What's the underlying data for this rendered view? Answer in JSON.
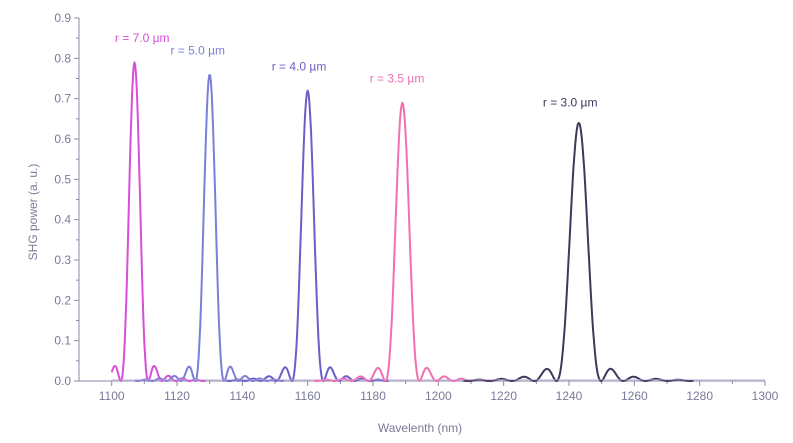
{
  "chart_data": {
    "type": "line",
    "title": "",
    "xlabel": "Wavelenth (nm)",
    "ylabel": "SHG power (a. u.)",
    "xlim": [
      1090,
      1300
    ],
    "ylim": [
      0,
      0.9
    ],
    "xticks": [
      1100,
      1120,
      1140,
      1160,
      1180,
      1200,
      1220,
      1240,
      1260,
      1280,
      1300
    ],
    "xtick_labels": [
      "1100",
      "1120",
      "1140",
      "1160",
      "1180",
      "1200",
      "1220",
      "1240",
      "1260",
      "1280",
      "1300"
    ],
    "yticks": [
      0,
      0.1,
      0.2,
      0.3,
      0.4,
      0.5,
      0.6,
      0.7,
      0.8,
      0.9
    ],
    "ytick_labels": [
      "0.0",
      "0.1",
      "0.2",
      "0.3",
      "0.4",
      "0.5",
      "0.6",
      "0.7",
      "0.8",
      "0.9"
    ],
    "grid": false,
    "legend": "none",
    "series": [
      {
        "name": "r = 7.0 µm",
        "color": "#d64fd6",
        "center": 1107,
        "peak": 0.79,
        "halfwidth": 4.2,
        "label_x": 1101,
        "label_y": 0.84
      },
      {
        "name": "r = 5.0 µm",
        "color": "#7b7fd6",
        "center": 1130,
        "peak": 0.76,
        "halfwidth": 4.4,
        "label_x": 1118,
        "label_y": 0.81
      },
      {
        "name": "r = 4.0 µm",
        "color": "#6a5fc8",
        "center": 1160,
        "peak": 0.72,
        "halfwidth": 4.8,
        "label_x": 1149,
        "label_y": 0.77
      },
      {
        "name": "r = 3.5 µm",
        "color": "#f06fb0",
        "center": 1189,
        "peak": 0.69,
        "halfwidth": 5.2,
        "label_x": 1179,
        "label_y": 0.74
      },
      {
        "name": "r = 3.0 µm",
        "color": "#3a3a5a",
        "center": 1243,
        "peak": 0.64,
        "halfwidth": 6.8,
        "label_x": 1232,
        "label_y": 0.68
      }
    ]
  }
}
